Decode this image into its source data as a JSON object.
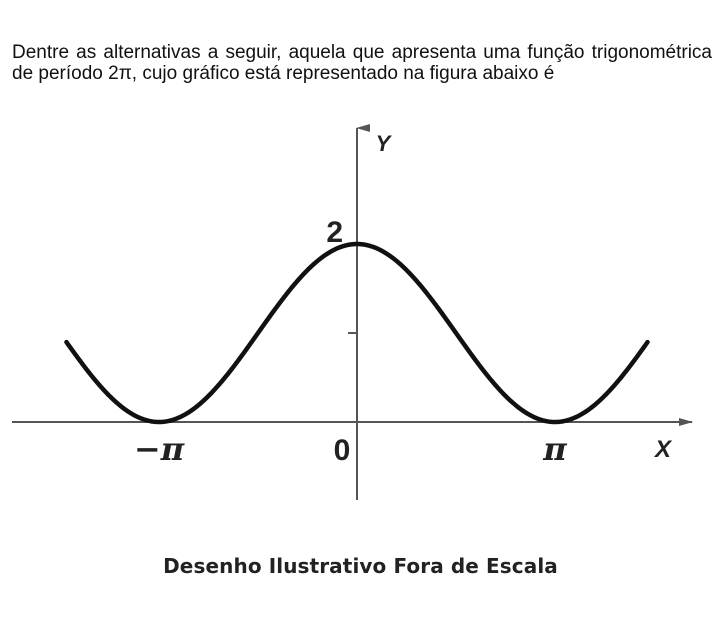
{
  "question": {
    "text": "Dentre as alternativas a seguir, aquela que apresenta uma função trigonométrica de período 2π, cujo gráfico está representado na figura abaixo é"
  },
  "caption": "Desenho Ilustrativo Fora de Escala",
  "chart_data": {
    "type": "line",
    "title": "",
    "xlabel": "X",
    "ylabel": "Y",
    "x_range": [
      -4.61,
      4.61
    ],
    "y_range": [
      -1.2,
      2.7
    ],
    "x_ticks": [
      {
        "value": -3.14159,
        "label": "−π"
      },
      {
        "value": 0,
        "label": "0"
      },
      {
        "value": 3.14159,
        "label": "π"
      }
    ],
    "y_ticks": [
      {
        "value": 1,
        "label": ""
      },
      {
        "value": 2,
        "label": "2"
      }
    ],
    "series": [
      {
        "function": "1 + cos(x)",
        "x": [
          -4.61,
          -4.0,
          -3.5,
          -3.14159,
          -2.5,
          -2.0,
          -1.5,
          -1.0,
          -0.5,
          0,
          0.5,
          1.0,
          1.5,
          2.0,
          2.5,
          3.14159,
          3.5,
          4.0,
          4.61
        ],
        "y": [
          0.9,
          0.35,
          0.06,
          0.0,
          0.2,
          0.58,
          1.07,
          1.54,
          1.88,
          2.0,
          1.88,
          1.54,
          1.07,
          0.58,
          0.2,
          0.0,
          0.06,
          0.35,
          0.9
        ]
      }
    ],
    "grid": false,
    "line_color": "#111111",
    "axis_color": "#555555"
  }
}
